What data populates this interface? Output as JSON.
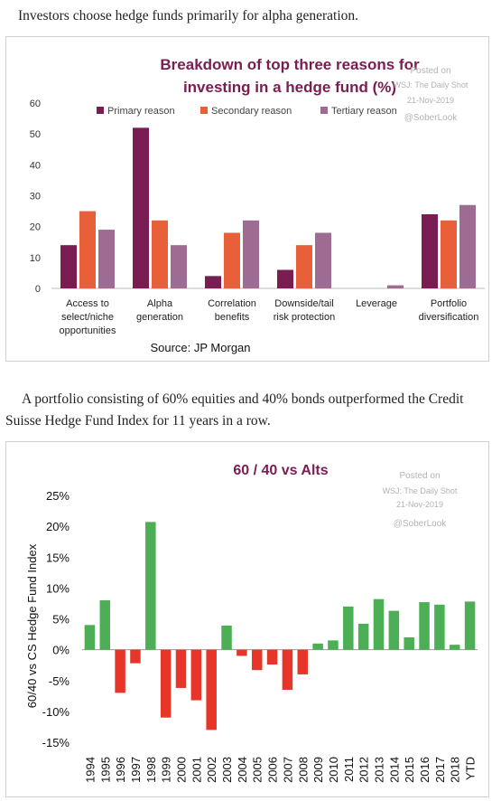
{
  "paragraph1": "Investors choose hedge funds primarily for alpha generation.",
  "paragraph2": "A portfolio consisting of 60% equities and 40% bonds outperformed the Credit Suisse Hedge Fund Index for 11 years in a row.",
  "chart_data": [
    {
      "type": "bar",
      "title_lines": [
        "Breakdown of top three reasons for",
        "investing in a hedge fund (%)"
      ],
      "categories": [
        [
          "Access to",
          "select/niche",
          "opportunities"
        ],
        [
          "Alpha",
          "generation"
        ],
        [
          "Correlation",
          "benefits"
        ],
        [
          "Downside/tail",
          "risk protection"
        ],
        [
          "Leverage"
        ],
        [
          "Portfolio",
          "diversification"
        ]
      ],
      "series": [
        {
          "name": "Primary reason",
          "color": "#7a1d52",
          "values": [
            14,
            52,
            4,
            6,
            0,
            24
          ]
        },
        {
          "name": "Secondary reason",
          "color": "#e8603a",
          "values": [
            25,
            22,
            18,
            14,
            0,
            22
          ]
        },
        {
          "name": "Tertiary reason",
          "color": "#9e6b92",
          "values": [
            19,
            14,
            22,
            18,
            1,
            27
          ]
        }
      ],
      "ylim": [
        0,
        60
      ],
      "yticks": [
        "0",
        "10",
        "20",
        "30",
        "40",
        "50",
        "60"
      ],
      "legend_position": "top",
      "source": "Source: JP Morgan",
      "watermark": [
        "Posted on",
        "WSJ: The Daily Shot",
        "21-Nov-2019",
        "@SoberLook"
      ]
    },
    {
      "type": "bar",
      "title": "60 / 40 vs Alts",
      "ylabel": "60/40 vs CS Hedge Fund Index",
      "categories": [
        "1994",
        "1995",
        "1996",
        "1997",
        "1998",
        "1999",
        "2000",
        "2001",
        "2002",
        "2003",
        "2004",
        "2005",
        "2006",
        "2007",
        "2008",
        "2009",
        "2010",
        "2011",
        "2012",
        "2013",
        "2014",
        "2015",
        "2016",
        "2017",
        "2018",
        "YTD"
      ],
      "values": [
        4.0,
        8.0,
        -7.0,
        -2.2,
        20.7,
        -11.0,
        -6.2,
        -8.2,
        -13.0,
        3.9,
        -1.0,
        -3.3,
        -2.4,
        -6.5,
        -4.0,
        1.0,
        1.5,
        7.0,
        4.2,
        8.2,
        6.3,
        2.0,
        7.7,
        7.3,
        0.8,
        7.8
      ],
      "positive_color": "#4caf55",
      "negative_color": "#e8352a",
      "ylim": [
        -15,
        25
      ],
      "yticks": [
        "-15%",
        "-10%",
        "-5%",
        "0%",
        "5%",
        "10%",
        "15%",
        "20%",
        "25%"
      ],
      "watermark": [
        "Posted on",
        "WSJ: The Daily Shot",
        "21-Nov-2019",
        "@SoberLook"
      ]
    }
  ]
}
